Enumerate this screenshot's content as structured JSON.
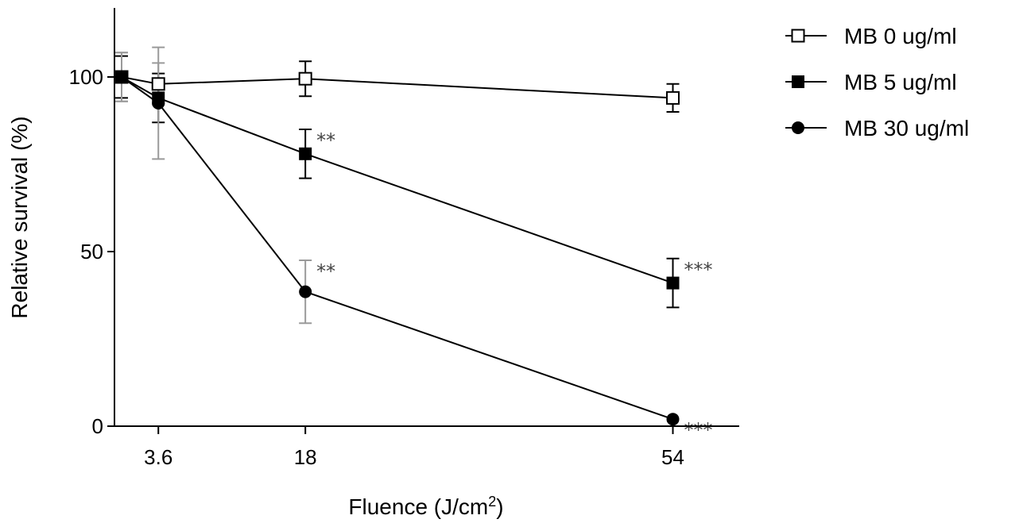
{
  "chart_data": {
    "type": "line",
    "xlabel": "Fluence (J/cm",
    "xlabel_sup": "2",
    "xlabel_close": ")",
    "ylabel": "Relative survival (%)",
    "x_ticks": [
      {
        "value": 3.6,
        "label": "3.6"
      },
      {
        "value": 18,
        "label": "18"
      },
      {
        "value": 54,
        "label": "54"
      }
    ],
    "y_ticks": [
      {
        "value": 0,
        "label": "0"
      },
      {
        "value": 50,
        "label": "50"
      },
      {
        "value": 100,
        "label": "100"
      }
    ],
    "xlim": [
      -0.7,
      60.5
    ],
    "ylim": [
      0,
      120
    ],
    "grid": false,
    "legend_position": "top-right",
    "series": [
      {
        "name": "MB 0 ug/ml",
        "marker": "open-square",
        "points": [
          {
            "x": 0,
            "y": 100,
            "err": 7,
            "err_color": "#9a9a9a",
            "sig": ""
          },
          {
            "x": 3.6,
            "y": 98,
            "err": 6,
            "err_color": "#9a9a9a",
            "sig": ""
          },
          {
            "x": 18,
            "y": 99.5,
            "err": 5,
            "err_color": "#000000",
            "sig": ""
          },
          {
            "x": 54,
            "y": 94,
            "err": 4,
            "err_color": "#000000",
            "sig": ""
          }
        ]
      },
      {
        "name": "MB 5 ug/ml",
        "marker": "filled-square",
        "points": [
          {
            "x": 0,
            "y": 100,
            "err": 6,
            "err_color": "#000000",
            "sig": ""
          },
          {
            "x": 3.6,
            "y": 94,
            "err": 7,
            "err_color": "#000000",
            "sig": ""
          },
          {
            "x": 18,
            "y": 78,
            "err": 7,
            "err_color": "#000000",
            "sig": "**"
          },
          {
            "x": 54,
            "y": 41,
            "err": 7,
            "err_color": "#000000",
            "sig": "***"
          }
        ]
      },
      {
        "name": "MB 30 ug/ml",
        "marker": "filled-circle",
        "points": [
          {
            "x": 0,
            "y": 100,
            "err": 7,
            "err_color": "#9a9a9a",
            "sig": ""
          },
          {
            "x": 3.6,
            "y": 92.5,
            "err": 16,
            "err_color": "#9a9a9a",
            "sig": ""
          },
          {
            "x": 18,
            "y": 38.5,
            "err": 9,
            "err_color": "#9a9a9a",
            "sig": "**"
          },
          {
            "x": 54,
            "y": 2,
            "err": 0,
            "err_color": "#000000",
            "sig": "***"
          }
        ]
      }
    ]
  }
}
